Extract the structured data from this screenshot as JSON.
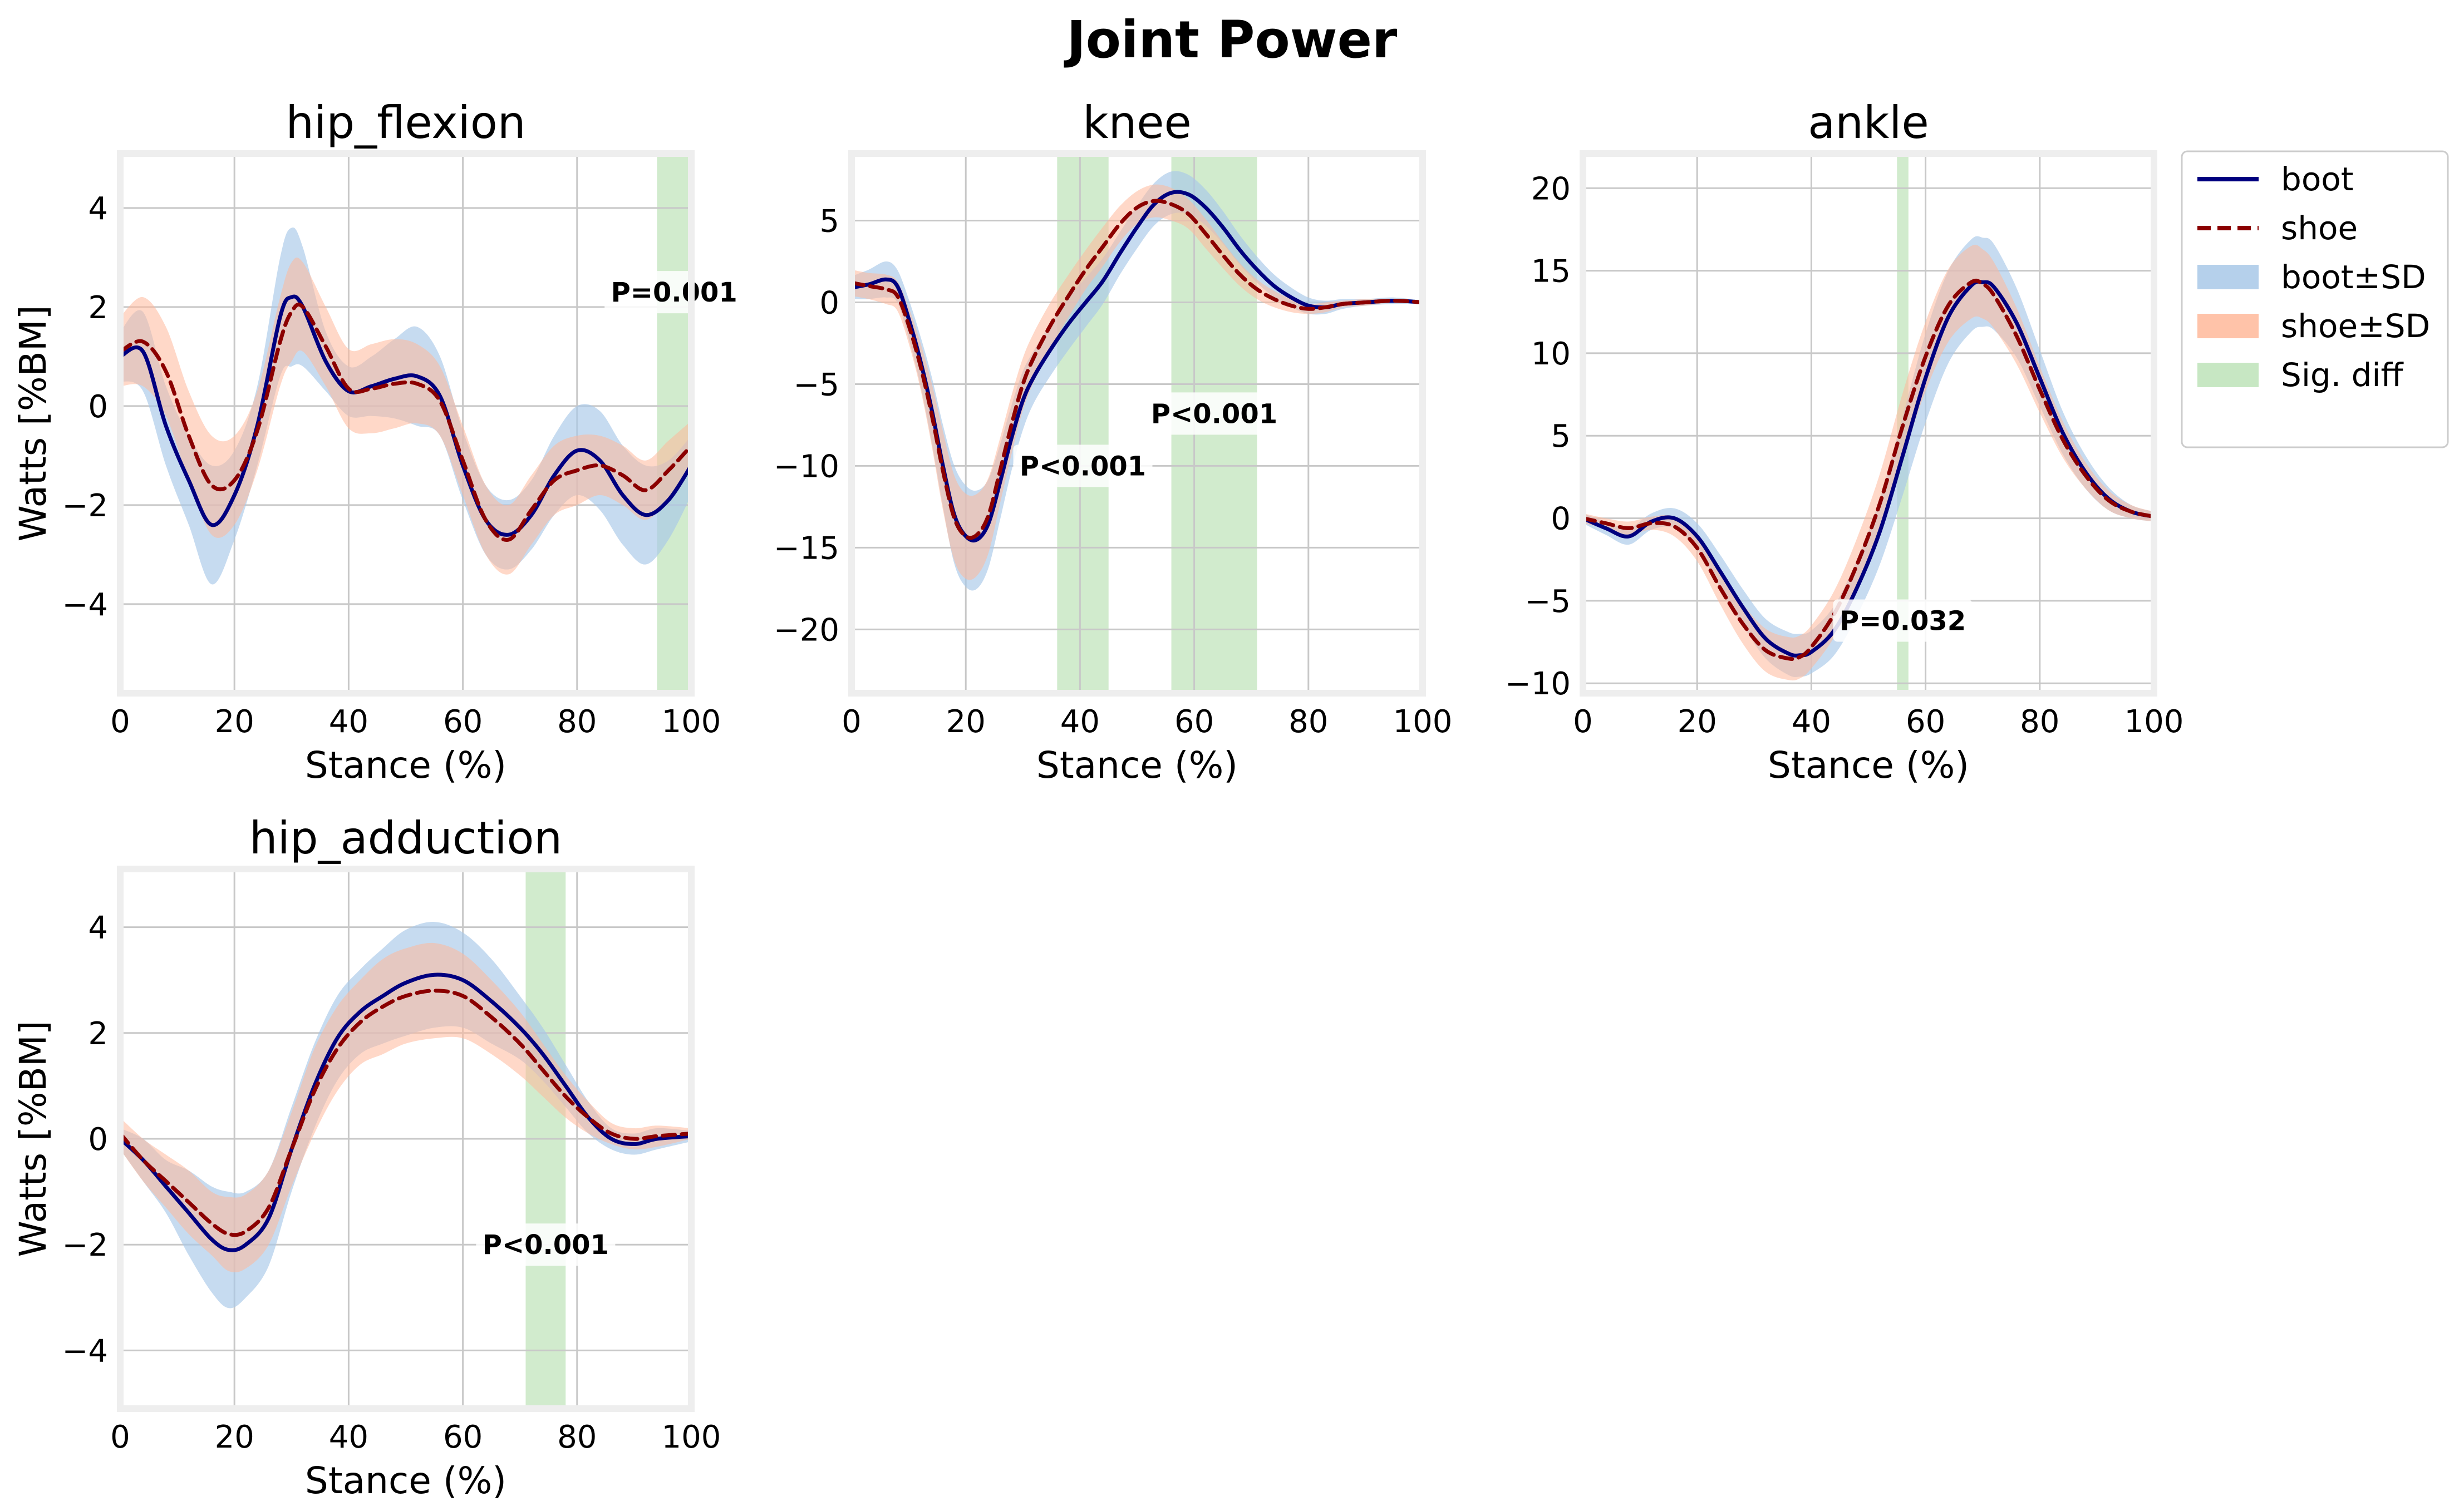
{
  "figure": {
    "title": "Joint Power"
  },
  "legend": {
    "placement": "upper-right-outside",
    "items": [
      {
        "label": "boot",
        "kind": "line",
        "color": "#00007f",
        "dash": "solid"
      },
      {
        "label": "shoe",
        "kind": "line",
        "color": "#8b0000",
        "dash": "dashed"
      },
      {
        "label": "boot±SD",
        "kind": "patch",
        "color": "#a8c8e8"
      },
      {
        "label": "shoe±SD",
        "kind": "patch",
        "color": "#ffb89a"
      },
      {
        "label": "Sig. diff",
        "kind": "patch",
        "color": "#bde3b8"
      }
    ]
  },
  "colors": {
    "boot_line": "#00007f",
    "shoe_line": "#8b0000",
    "boot_band": "#a8c8e8",
    "shoe_band": "#ffb89a",
    "sig_band": "#bde3b8",
    "grid": "#c8c8c8",
    "frame": "#eeeeee"
  },
  "chart_data": [
    {
      "type": "line",
      "title": "hip_flexion",
      "xlabel": "Stance (%)",
      "ylabel": "Watts [%BM]",
      "xlim": [
        0,
        100
      ],
      "ylim": [
        -5.8,
        5.1
      ],
      "xticks": [
        0,
        20,
        40,
        60,
        80,
        100
      ],
      "yticks": [
        -4,
        -2,
        0,
        2,
        4
      ],
      "grid": true,
      "x": [
        0,
        4,
        8,
        12,
        16,
        20,
        24,
        28,
        30,
        32,
        36,
        40,
        44,
        48,
        52,
        56,
        60,
        64,
        68,
        72,
        76,
        80,
        84,
        88,
        92,
        96,
        100
      ],
      "series": [
        {
          "name": "boot",
          "values": [
            1.0,
            1.1,
            -0.4,
            -1.5,
            -2.4,
            -1.8,
            -0.4,
            1.8,
            2.2,
            2.0,
            0.9,
            0.3,
            0.4,
            0.55,
            0.6,
            0.2,
            -1.2,
            -2.3,
            -2.6,
            -2.2,
            -1.4,
            -0.9,
            -1.1,
            -1.8,
            -2.2,
            -1.9,
            -1.2
          ],
          "sd": [
            0.5,
            0.8,
            0.8,
            0.9,
            1.2,
            0.9,
            0.8,
            1.2,
            1.4,
            1.2,
            0.6,
            0.5,
            0.6,
            0.8,
            1.0,
            0.8,
            0.7,
            0.7,
            0.7,
            0.7,
            0.8,
            0.9,
            1.0,
            1.0,
            1.0,
            0.8,
            0.6
          ]
        },
        {
          "name": "shoe",
          "values": [
            1.1,
            1.3,
            0.7,
            -0.6,
            -1.6,
            -1.5,
            -0.5,
            1.3,
            1.9,
            2.0,
            1.2,
            0.35,
            0.35,
            0.45,
            0.45,
            0.1,
            -1.1,
            -2.3,
            -2.7,
            -2.1,
            -1.5,
            -1.3,
            -1.2,
            -1.4,
            -1.7,
            -1.3,
            -0.8
          ],
          "sd": [
            0.7,
            0.9,
            0.9,
            0.9,
            1.0,
            0.9,
            0.8,
            0.9,
            1.0,
            0.9,
            0.8,
            0.8,
            0.9,
            0.9,
            0.8,
            0.7,
            0.7,
            0.7,
            0.7,
            0.7,
            0.7,
            0.7,
            0.6,
            0.6,
            0.6,
            0.6,
            0.5
          ]
        }
      ],
      "sig_regions": [
        [
          94,
          100
        ]
      ],
      "annotations": [
        {
          "text": "P=0.001",
          "x": 97,
          "y": 2.3
        }
      ]
    },
    {
      "type": "line",
      "title": "knee",
      "xlabel": "Stance (%)",
      "ylabel": "",
      "xlim": [
        0,
        100
      ],
      "ylim": [
        -23.9,
        9.1
      ],
      "xticks": [
        0,
        20,
        40,
        60,
        80,
        100
      ],
      "yticks": [
        -20,
        -15,
        -10,
        -5,
        0,
        5
      ],
      "grid": true,
      "x": [
        0,
        3,
        6,
        8,
        10,
        12,
        14,
        16,
        18,
        20,
        22,
        24,
        26,
        28,
        30,
        32,
        35,
        38,
        41,
        44,
        47,
        50,
        53,
        56,
        59,
        62,
        65,
        68,
        71,
        74,
        77,
        80,
        83,
        86,
        90,
        95,
        100
      ],
      "series": [
        {
          "name": "boot",
          "values": [
            0.9,
            1.1,
            1.4,
            1.0,
            -1.0,
            -3.5,
            -6.5,
            -10.0,
            -13.0,
            -14.3,
            -14.5,
            -13.5,
            -11.0,
            -8.3,
            -6.0,
            -4.5,
            -2.8,
            -1.3,
            0.0,
            1.3,
            3.0,
            4.6,
            6.0,
            6.7,
            6.6,
            5.8,
            4.6,
            3.2,
            2.0,
            1.0,
            0.3,
            -0.2,
            -0.3,
            -0.1,
            0.0,
            0.1,
            0.0
          ],
          "sd": [
            0.7,
            0.9,
            1.1,
            1.0,
            1.2,
            1.5,
            2.0,
            2.5,
            3.0,
            3.1,
            3.0,
            2.7,
            2.3,
            2.0,
            1.8,
            1.6,
            1.6,
            1.6,
            1.5,
            1.4,
            1.3,
            1.3,
            1.3,
            1.3,
            1.2,
            1.1,
            1.0,
            0.9,
            0.8,
            0.7,
            0.6,
            0.5,
            0.4,
            0.3,
            0.2,
            0.2,
            0.1
          ]
        },
        {
          "name": "shoe",
          "values": [
            1.2,
            1.0,
            0.8,
            0.4,
            -1.4,
            -3.8,
            -6.8,
            -10.3,
            -13.2,
            -14.3,
            -14.2,
            -13.0,
            -10.3,
            -7.5,
            -5.0,
            -3.3,
            -1.3,
            0.4,
            2.0,
            3.4,
            4.8,
            5.8,
            6.2,
            6.0,
            5.4,
            4.2,
            2.9,
            1.7,
            0.8,
            0.2,
            -0.2,
            -0.4,
            -0.3,
            -0.1,
            0.0,
            0.1,
            0.0
          ],
          "sd": [
            0.8,
            0.8,
            0.9,
            0.9,
            1.1,
            1.4,
            1.9,
            2.4,
            2.6,
            2.6,
            2.5,
            2.3,
            2.0,
            1.8,
            1.6,
            1.5,
            1.4,
            1.3,
            1.2,
            1.2,
            1.1,
            1.0,
            1.0,
            1.0,
            0.9,
            0.9,
            0.8,
            0.7,
            0.6,
            0.5,
            0.4,
            0.3,
            0.3,
            0.2,
            0.2,
            0.1,
            0.1
          ]
        }
      ],
      "sig_regions": [
        [
          36,
          45
        ],
        [
          56,
          71
        ]
      ],
      "annotations": [
        {
          "text": "P<0.001",
          "x": 40.5,
          "y": -10.0
        },
        {
          "text": "P<0.001",
          "x": 63.5,
          "y": -6.8
        }
      ]
    },
    {
      "type": "line",
      "title": "ankle",
      "xlabel": "Stance (%)",
      "ylabel": "",
      "xlim": [
        0,
        100
      ],
      "ylim": [
        -10.6,
        22.1
      ],
      "xticks": [
        0,
        20,
        40,
        60,
        80,
        100
      ],
      "yticks": [
        -10,
        -5,
        0,
        5,
        10,
        15,
        20
      ],
      "grid": true,
      "x": [
        0,
        4,
        8,
        12,
        16,
        20,
        24,
        28,
        32,
        36,
        38,
        40,
        44,
        48,
        52,
        56,
        60,
        64,
        68,
        70,
        72,
        76,
        80,
        84,
        88,
        92,
        96,
        100
      ],
      "series": [
        {
          "name": "boot",
          "values": [
            0.0,
            -0.6,
            -1.1,
            -0.2,
            0.0,
            -1.1,
            -3.2,
            -5.4,
            -7.3,
            -8.2,
            -8.3,
            -8.1,
            -6.8,
            -4.2,
            -0.8,
            3.8,
            8.5,
            12.2,
            14.1,
            14.3,
            14.0,
            11.8,
            8.5,
            5.2,
            2.8,
            1.2,
            0.4,
            0.1
          ],
          "sd": [
            0.3,
            0.4,
            0.5,
            0.5,
            0.6,
            0.8,
            1.0,
            1.1,
            1.2,
            1.3,
            1.3,
            1.3,
            1.5,
            1.7,
            2.0,
            2.4,
            2.7,
            2.8,
            2.8,
            2.7,
            2.6,
            2.1,
            1.7,
            1.3,
            1.0,
            0.7,
            0.4,
            0.3
          ]
        },
        {
          "name": "shoe",
          "values": [
            0.0,
            -0.3,
            -0.6,
            -0.3,
            -0.5,
            -1.8,
            -4.2,
            -6.4,
            -8.0,
            -8.5,
            -8.4,
            -7.8,
            -5.8,
            -2.8,
            0.9,
            5.6,
            9.8,
            12.9,
            14.3,
            14.2,
            13.5,
            11.0,
            7.8,
            4.8,
            2.6,
            1.1,
            0.4,
            0.1
          ],
          "sd": [
            0.3,
            0.3,
            0.4,
            0.4,
            0.6,
            0.8,
            1.0,
            1.2,
            1.3,
            1.3,
            1.3,
            1.3,
            1.4,
            1.6,
            1.8,
            2.0,
            2.1,
            2.2,
            2.2,
            2.1,
            2.0,
            1.7,
            1.4,
            1.1,
            0.8,
            0.6,
            0.4,
            0.3
          ]
        }
      ],
      "sig_regions": [
        [
          55,
          57
        ]
      ],
      "annotations": [
        {
          "text": "P=0.032",
          "x": 56,
          "y": -6.2
        }
      ]
    },
    {
      "type": "line",
      "title": "hip_adduction",
      "xlabel": "Stance (%)",
      "ylabel": "Watts [%BM]",
      "xlim": [
        0,
        100
      ],
      "ylim": [
        -5.1,
        5.1
      ],
      "xticks": [
        0,
        20,
        40,
        60,
        80,
        100
      ],
      "yticks": [
        -4,
        -2,
        0,
        2,
        4
      ],
      "grid": true,
      "x": [
        0,
        4,
        8,
        12,
        16,
        19,
        22,
        26,
        30,
        34,
        38,
        42,
        46,
        50,
        55,
        60,
        65,
        70,
        74,
        78,
        82,
        86,
        90,
        94,
        100
      ],
      "series": [
        {
          "name": "boot",
          "values": [
            0.0,
            -0.4,
            -0.9,
            -1.4,
            -1.9,
            -2.1,
            -2.0,
            -1.5,
            -0.2,
            1.0,
            1.9,
            2.4,
            2.7,
            2.95,
            3.1,
            3.0,
            2.6,
            2.1,
            1.6,
            1.0,
            0.4,
            0.0,
            -0.1,
            0.0,
            0.05
          ],
          "sd": [
            0.2,
            0.4,
            0.5,
            0.8,
            1.0,
            1.1,
            1.0,
            0.9,
            0.8,
            0.8,
            0.8,
            0.8,
            0.9,
            1.0,
            1.0,
            0.9,
            0.8,
            0.6,
            0.5,
            0.4,
            0.3,
            0.2,
            0.2,
            0.2,
            0.1
          ]
        },
        {
          "name": "shoe",
          "values": [
            0.1,
            -0.4,
            -0.8,
            -1.2,
            -1.6,
            -1.8,
            -1.75,
            -1.3,
            -0.2,
            0.9,
            1.7,
            2.2,
            2.5,
            2.7,
            2.8,
            2.7,
            2.3,
            1.8,
            1.3,
            0.8,
            0.4,
            0.1,
            0.0,
            0.05,
            0.1
          ],
          "sd": [
            0.3,
            0.4,
            0.5,
            0.6,
            0.6,
            0.7,
            0.7,
            0.7,
            0.7,
            0.8,
            0.8,
            0.8,
            0.9,
            0.9,
            0.9,
            0.8,
            0.7,
            0.6,
            0.5,
            0.4,
            0.3,
            0.2,
            0.2,
            0.2,
            0.1
          ]
        }
      ],
      "sig_regions": [
        [
          71,
          78
        ]
      ],
      "annotations": [
        {
          "text": "P<0.001",
          "x": 74.5,
          "y": -2.0
        }
      ]
    }
  ]
}
